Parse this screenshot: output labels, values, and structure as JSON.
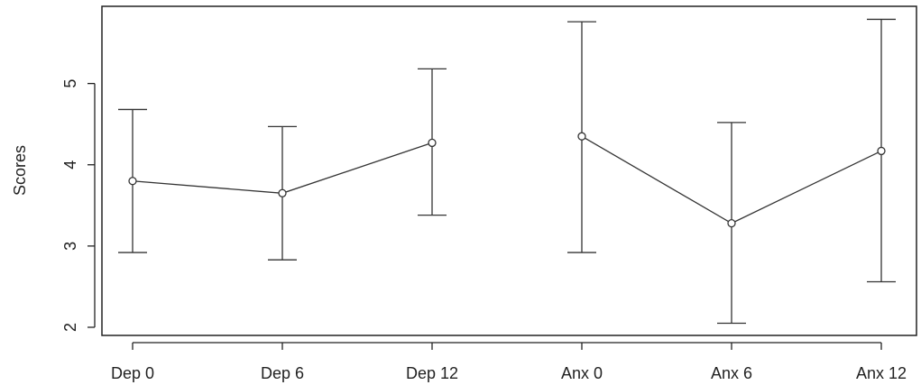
{
  "chart_data": {
    "type": "line",
    "title": "",
    "xlabel": "",
    "ylabel": "Scores",
    "categories": [
      "Dep 0",
      "Dep 6",
      "Dep 12",
      "Anx 0",
      "Anx 6",
      "Anx 12"
    ],
    "groups": [
      {
        "points": [
          {
            "label": "Dep 0",
            "value": 3.8,
            "lower": 2.92,
            "upper": 4.68
          },
          {
            "label": "Dep 6",
            "value": 3.65,
            "lower": 2.83,
            "upper": 4.47
          },
          {
            "label": "Dep 12",
            "value": 4.27,
            "lower": 3.38,
            "upper": 5.18
          }
        ]
      },
      {
        "points": [
          {
            "label": "Anx 0",
            "value": 4.35,
            "lower": 2.92,
            "upper": 5.76
          },
          {
            "label": "Anx 6",
            "value": 3.28,
            "lower": 2.05,
            "upper": 4.52
          },
          {
            "label": "Anx 12",
            "value": 4.17,
            "lower": 2.56,
            "upper": 5.79
          }
        ]
      }
    ],
    "y_ticks": [
      2,
      3,
      4,
      5
    ],
    "ylim": [
      1.9,
      5.95
    ],
    "grid": false,
    "legend": "none",
    "colors": {
      "line": "#333333",
      "axis": "#222222"
    }
  }
}
